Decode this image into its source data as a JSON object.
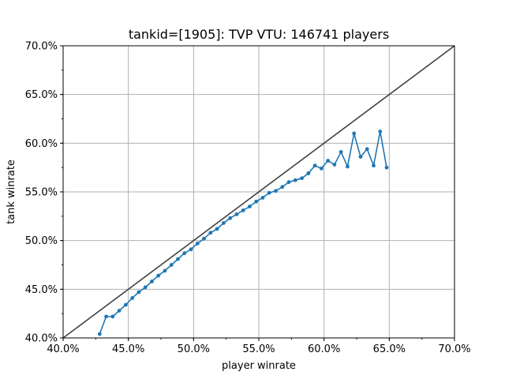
{
  "chart_data": {
    "type": "line",
    "title": "tankid=[1905]: TVP VTU: 146741 players",
    "xlabel": "player winrate",
    "ylabel": "tank winrate",
    "xlim": [
      0.4,
      0.7
    ],
    "ylim": [
      0.4,
      0.7
    ],
    "x_ticks": [
      0.4,
      0.45,
      0.5,
      0.55,
      0.6,
      0.65,
      0.7
    ],
    "x_tick_labels": [
      "40.0%",
      "45.0%",
      "50.0%",
      "55.0%",
      "60.0%",
      "65.0%",
      "70.0%"
    ],
    "y_ticks": [
      0.4,
      0.45,
      0.5,
      0.55,
      0.6,
      0.65,
      0.7
    ],
    "y_tick_labels": [
      "40.0%",
      "45.0%",
      "50.0%",
      "55.0%",
      "60.0%",
      "65.0%",
      "70.0%"
    ],
    "minor_step": 0.025,
    "grid": true,
    "colors": {
      "series": "#1f77b4",
      "reference": "#404040",
      "grid": "#b0b0b0"
    },
    "reference_line": [
      [
        0.4,
        0.4
      ],
      [
        0.7,
        0.7
      ]
    ],
    "series": [
      {
        "x": [
          0.428,
          0.433,
          0.438,
          0.443,
          0.448,
          0.453,
          0.458,
          0.463,
          0.468,
          0.473,
          0.478,
          0.483,
          0.488,
          0.493,
          0.498,
          0.503,
          0.508,
          0.513,
          0.518,
          0.523,
          0.528,
          0.533,
          0.538,
          0.543,
          0.548,
          0.553,
          0.558,
          0.563,
          0.568,
          0.573,
          0.578,
          0.583,
          0.588,
          0.593,
          0.598,
          0.603,
          0.608,
          0.613,
          0.618,
          0.623,
          0.628,
          0.633,
          0.638,
          0.643,
          0.648
        ],
        "y": [
          0.404,
          0.422,
          0.422,
          0.428,
          0.434,
          0.441,
          0.447,
          0.452,
          0.458,
          0.464,
          0.469,
          0.475,
          0.481,
          0.487,
          0.491,
          0.497,
          0.502,
          0.508,
          0.512,
          0.518,
          0.523,
          0.527,
          0.531,
          0.535,
          0.54,
          0.544,
          0.549,
          0.551,
          0.555,
          0.56,
          0.562,
          0.564,
          0.569,
          0.577,
          0.574,
          0.582,
          0.578,
          0.591,
          0.576,
          0.61,
          0.586,
          0.594,
          0.577,
          0.612,
          0.575
        ]
      }
    ]
  }
}
